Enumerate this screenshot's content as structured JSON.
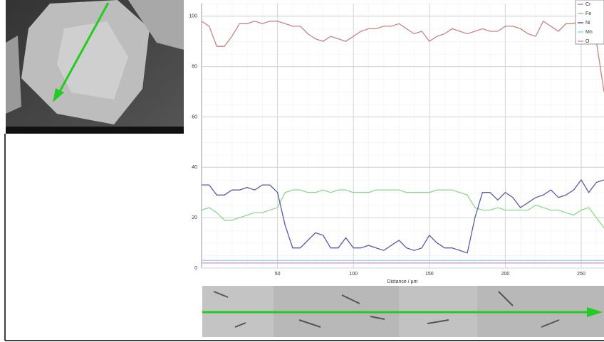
{
  "chart_data": {
    "type": "line",
    "xlabel": "Distance / µm",
    "x": [
      0,
      5,
      10,
      15,
      20,
      25,
      30,
      35,
      40,
      45,
      50,
      55,
      60,
      65,
      70,
      75,
      80,
      85,
      90,
      95,
      100,
      105,
      110,
      115,
      120,
      125,
      130,
      135,
      140,
      145,
      150,
      155,
      160,
      165,
      170,
      175,
      180,
      185,
      190,
      195,
      200,
      205,
      210,
      215,
      220,
      225,
      230,
      235,
      240,
      245,
      250,
      255,
      260,
      265
    ],
    "series": [
      {
        "name": "Cr",
        "color": "#c98585",
        "values": [
          98,
          96,
          88,
          88,
          92,
          97,
          97,
          98,
          97,
          98,
          98,
          97,
          96,
          96,
          93,
          91,
          90,
          92,
          91,
          90,
          92,
          94,
          95,
          95,
          96,
          96,
          97,
          95,
          93,
          94,
          90,
          92,
          93,
          95,
          94,
          93,
          94,
          95,
          94,
          94,
          96,
          96,
          95,
          93,
          92,
          98,
          96,
          94,
          97,
          97,
          99,
          98,
          90,
          70
        ]
      },
      {
        "name": "Fe",
        "color": "#8fd88f",
        "values": [
          23,
          24,
          22,
          19,
          19,
          20,
          21,
          22,
          22,
          23,
          24,
          30,
          31,
          31,
          30,
          30,
          31,
          30,
          31,
          31,
          30,
          30,
          30,
          31,
          31,
          31,
          31,
          30,
          30,
          30,
          30,
          31,
          31,
          31,
          30,
          29,
          24,
          23,
          23,
          24,
          23,
          23,
          23,
          23,
          25,
          24,
          23,
          23,
          22,
          21,
          23,
          24,
          20,
          16
        ]
      },
      {
        "name": "Ni",
        "color": "#5a5aa8",
        "values": [
          33,
          33,
          29,
          29,
          31,
          31,
          32,
          31,
          33,
          33,
          30,
          17,
          8,
          8,
          11,
          14,
          13,
          8,
          8,
          12,
          8,
          8,
          9,
          8,
          7,
          9,
          11,
          8,
          7,
          8,
          13,
          10,
          8,
          8,
          7,
          6,
          20,
          30,
          30,
          27,
          30,
          28,
          24,
          26,
          28,
          29,
          31,
          28,
          29,
          31,
          35,
          30,
          34,
          35
        ]
      },
      {
        "name": "Mn",
        "color": "#8fd6e6",
        "values": [
          3,
          3,
          3,
          3,
          3,
          3,
          3,
          3,
          3,
          3,
          3,
          3,
          3,
          3,
          3,
          3,
          3,
          3,
          3,
          3,
          3,
          3,
          3,
          3,
          3,
          3,
          3,
          3,
          3,
          3,
          3,
          3,
          3,
          3,
          3,
          3,
          3,
          3,
          3,
          3,
          3,
          3,
          3,
          3,
          3,
          3,
          3,
          3,
          3,
          3,
          3,
          3,
          3,
          3
        ]
      },
      {
        "name": "O",
        "color": "#d68fd6",
        "values": [
          2,
          2,
          2,
          2,
          2,
          2,
          2,
          2,
          2,
          2,
          2,
          2,
          2,
          2,
          2,
          2,
          2,
          2,
          2,
          2,
          2,
          2,
          2,
          2,
          2,
          2,
          2,
          2,
          2,
          2,
          2,
          2,
          2,
          2,
          2,
          2,
          2,
          2,
          2,
          2,
          2,
          2,
          2,
          2,
          2,
          2,
          2,
          2,
          2,
          2,
          2,
          2,
          2,
          2
        ]
      }
    ],
    "xlim": [
      0,
      265
    ],
    "xticks": [
      50,
      100,
      150,
      200,
      250
    ],
    "ylim": [
      0,
      105
    ],
    "yticks": [
      0,
      20,
      40,
      60,
      80,
      100
    ],
    "grid": true,
    "legend": "upper right"
  }
}
